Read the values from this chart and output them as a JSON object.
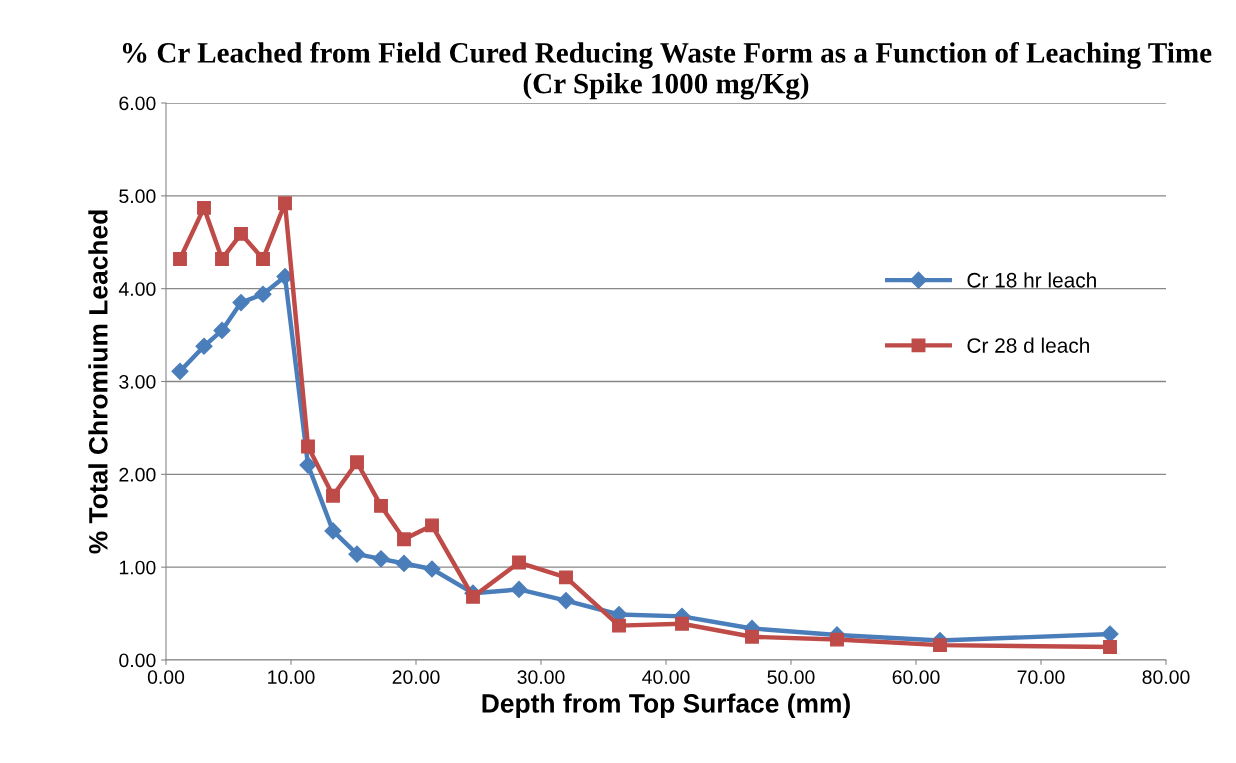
{
  "chart_data": {
    "type": "line",
    "title": "% Cr Leached from Field Cured Reducing Waste Form as a Function of Leaching Time (Cr Spike 1000 mg/Kg)",
    "xlabel": "Depth from Top Surface (mm)",
    "ylabel": "% Total Chromium Leached",
    "x": [
      1.12,
      3.04,
      4.48,
      6.0,
      7.76,
      9.52,
      11.36,
      13.36,
      15.28,
      17.2,
      19.04,
      21.28,
      24.56,
      28.24,
      32.0,
      36.24,
      41.28,
      46.88,
      53.68,
      61.92,
      75.52
    ],
    "series": [
      {
        "name": "Cr 18 hr leach",
        "color": "#4a7ebb",
        "marker": "diamond",
        "values": [
          3.11,
          3.38,
          3.55,
          3.85,
          3.94,
          4.13,
          2.1,
          1.39,
          1.14,
          1.09,
          1.04,
          0.98,
          0.72,
          0.76,
          0.64,
          0.49,
          0.47,
          0.34,
          0.27,
          0.21,
          0.28
        ]
      },
      {
        "name": "Cr 28 d leach",
        "color": "#be4b48",
        "marker": "square",
        "values": [
          4.32,
          4.87,
          4.32,
          4.59,
          4.32,
          4.92,
          2.3,
          1.77,
          2.13,
          1.66,
          1.3,
          1.45,
          0.68,
          1.05,
          0.89,
          0.37,
          0.39,
          0.25,
          0.22,
          0.16,
          0.14
        ]
      }
    ],
    "xlim": [
      0,
      80
    ],
    "ylim": [
      0,
      6
    ],
    "xticks": [
      {
        "value": 0,
        "label": "0.00"
      },
      {
        "value": 10,
        "label": "10.00"
      },
      {
        "value": 20,
        "label": "20.00"
      },
      {
        "value": 30,
        "label": "30.00"
      },
      {
        "value": 40,
        "label": "40.00"
      },
      {
        "value": 50,
        "label": "50.00"
      },
      {
        "value": 60,
        "label": "60.00"
      },
      {
        "value": 70,
        "label": "70.00"
      },
      {
        "value": 80,
        "label": "80.00"
      }
    ],
    "yticks": [
      {
        "value": 0,
        "label": "0.00"
      },
      {
        "value": 1,
        "label": "1.00"
      },
      {
        "value": 2,
        "label": "2.00"
      },
      {
        "value": 3,
        "label": "3.00"
      },
      {
        "value": 4,
        "label": "4.00"
      },
      {
        "value": 5,
        "label": "5.00"
      },
      {
        "value": 6,
        "label": "6.00"
      }
    ],
    "grid": "y",
    "legend": "right",
    "line_style": "solid"
  }
}
